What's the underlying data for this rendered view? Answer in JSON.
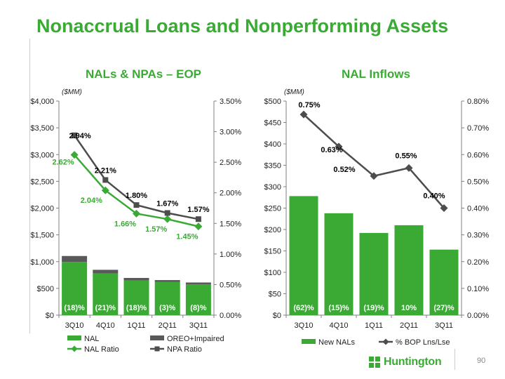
{
  "page": {
    "title": "Nonaccrual Loans and Nonperforming Assets",
    "page_number": "90"
  },
  "logo": {
    "text": "Huntington"
  },
  "colors": {
    "green": "#3aaa35",
    "dark_gray": "#595959",
    "marker_gray": "#4d4d4d",
    "axis": "#808080"
  },
  "chart_data": [
    {
      "type": "bar",
      "title": "NALs & NPAs – EOP",
      "unit_label": "($MM)",
      "categories": [
        "3Q10",
        "4Q10",
        "1Q11",
        "2Q11",
        "3Q11"
      ],
      "stacked": true,
      "series": [
        {
          "name": "NAL",
          "kind": "bar",
          "values": [
            994,
            778,
            646,
            618,
            576
          ]
        },
        {
          "name": "OREO+Impaired",
          "kind": "bar",
          "values": [
            111,
            69,
            49,
            37,
            34
          ]
        },
        {
          "name": "NAL Ratio",
          "kind": "line",
          "axis": "right",
          "values": [
            2.62,
            2.04,
            1.66,
            1.57,
            1.45
          ],
          "labels": [
            "2.62%",
            "2.04%",
            "1.66%",
            "1.57%",
            "1.45%"
          ]
        },
        {
          "name": "NPA Ratio",
          "kind": "line",
          "axis": "right",
          "values": [
            2.94,
            2.21,
            1.8,
            1.67,
            1.57
          ],
          "labels": [
            "2.94%",
            "2.21%",
            "1.80%",
            "1.67%",
            "1.57%"
          ]
        }
      ],
      "bar_labels": [
        "(18)%",
        "(21)%",
        "(18)%",
        "(3)%",
        "(8)%"
      ],
      "y_left": {
        "min": 0,
        "max": 4000,
        "ticks": [
          "$0",
          "$500",
          "$1,000",
          "$1,500",
          "$2,000",
          "$2,500",
          "$3,000",
          "$3,500",
          "$4,000"
        ]
      },
      "y_right": {
        "min": 0,
        "max": 3.5,
        "ticks": [
          "0.00%",
          "0.50%",
          "1.00%",
          "1.50%",
          "2.00%",
          "2.50%",
          "3.00%",
          "3.50%"
        ]
      },
      "legend": [
        "NAL",
        "OREO+Impaired",
        "NAL Ratio",
        "NPA Ratio"
      ],
      "legend_position": "bottom"
    },
    {
      "type": "bar",
      "title": "NAL Inflows",
      "unit_label": "($MM)",
      "categories": [
        "3Q10",
        "4Q10",
        "1Q11",
        "2Q11",
        "3Q11"
      ],
      "series": [
        {
          "name": "New NALs",
          "kind": "bar",
          "values": [
            278,
            238,
            192,
            210,
            153
          ]
        },
        {
          "name": "% BOP Lns/Lse",
          "kind": "line",
          "axis": "right",
          "values": [
            0.75,
            0.63,
            0.52,
            0.55,
            0.4
          ],
          "labels": [
            "0.75%",
            "0.63%",
            "0.52%",
            "0.55%",
            "0.40%"
          ]
        }
      ],
      "bar_labels": [
        "(62)%",
        "(15)%",
        "(19)%",
        "10%",
        "(27)%"
      ],
      "y_left": {
        "min": 0,
        "max": 500,
        "ticks": [
          "$0",
          "$50",
          "$100",
          "$150",
          "$200",
          "$250",
          "$300",
          "$350",
          "$400",
          "$450",
          "$500"
        ]
      },
      "y_right": {
        "min": 0,
        "max": 0.8,
        "ticks": [
          "0.00%",
          "0.10%",
          "0.20%",
          "0.30%",
          "0.40%",
          "0.50%",
          "0.60%",
          "0.70%",
          "0.80%"
        ]
      },
      "legend": [
        "New NALs",
        "% BOP Lns/Lse"
      ],
      "legend_position": "bottom"
    }
  ]
}
